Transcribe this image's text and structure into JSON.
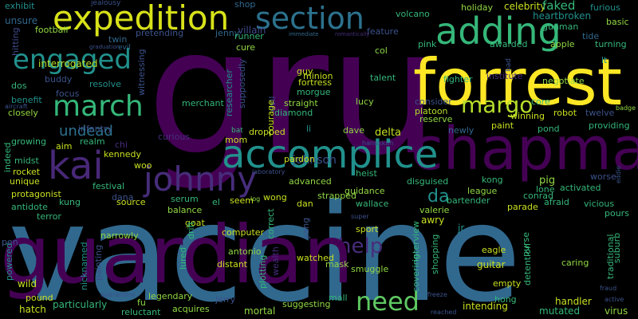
{
  "palette": {
    "background": "#000000",
    "dark_purple": "#440154",
    "indigo": "#3b528b",
    "blue": "#31688e",
    "teal": "#21918c",
    "green": "#35b779",
    "light_green": "#90d743",
    "yellow": "#fde725"
  },
  "words": [
    {
      "text": "gru",
      "color": "#440154"
    },
    {
      "text": "vaccine",
      "color": "#31688e"
    },
    {
      "text": "forrest",
      "color": "#fde725"
    },
    {
      "text": "chapman",
      "color": "#440154"
    },
    {
      "text": "accomplice",
      "color": "#21918c"
    },
    {
      "text": "expedition",
      "color": "#d8e219"
    },
    {
      "text": "section",
      "color": "#2c728e"
    },
    {
      "text": "adding",
      "color": "#35b779"
    },
    {
      "text": "engaged",
      "color": "#21918c"
    },
    {
      "text": "march",
      "color": "#35b779"
    },
    {
      "text": "kai",
      "color": "#482878"
    },
    {
      "text": "johnny",
      "color": "#472d7b"
    },
    {
      "text": "margo",
      "color": "#b5de2b"
    },
    {
      "text": "need",
      "color": "#5ec962"
    },
    {
      "text": "help",
      "color": "#472d7b"
    },
    {
      "text": "undead",
      "color": "#2c728e"
    },
    {
      "text": "da",
      "color": "#21918c"
    },
    {
      "text": "guardian",
      "color": "#440154"
    },
    {
      "text": "johnson",
      "color": "#3b528b"
    },
    {
      "text": "exhibit",
      "color": "#21918c"
    },
    {
      "text": "unsure",
      "color": "#31688e"
    },
    {
      "text": "jealousy",
      "color": "#3b528b"
    },
    {
      "text": "shop",
      "color": "#31688e"
    },
    {
      "text": "holiday",
      "color": "#90d743"
    },
    {
      "text": "celebrity",
      "color": "#c8e020"
    },
    {
      "text": "faked",
      "color": "#35b779"
    },
    {
      "text": "furious",
      "color": "#21918c"
    },
    {
      "text": "hitting",
      "color": "#3e4989"
    },
    {
      "text": "football",
      "color": "#90d743"
    },
    {
      "text": "twin",
      "color": "#31688e"
    },
    {
      "text": "villain",
      "color": "#3e4989"
    },
    {
      "text": "immediate",
      "color": "#31688e"
    },
    {
      "text": "heartbroken",
      "color": "#21918c"
    },
    {
      "text": "gunman",
      "color": "#35b779"
    },
    {
      "text": "basic",
      "color": "#90d743"
    },
    {
      "text": "graduation",
      "color": "#3b528b"
    },
    {
      "text": "evil",
      "color": "#31688e"
    },
    {
      "text": "romantically",
      "color": "#472d7b"
    },
    {
      "text": "feature",
      "color": "#3b528b"
    },
    {
      "text": "volcano",
      "color": "#35b779"
    },
    {
      "text": "tide",
      "color": "#31688e"
    },
    {
      "text": "interrogated",
      "color": "#b5de2b"
    },
    {
      "text": "pretending",
      "color": "#3b528b"
    },
    {
      "text": "jenny",
      "color": "#31688e"
    },
    {
      "text": "runner",
      "color": "#35b779"
    },
    {
      "text": "cure",
      "color": "#90d743"
    },
    {
      "text": "col",
      "color": "#90d743"
    },
    {
      "text": "pink",
      "color": "#35b779"
    },
    {
      "text": "awarded",
      "color": "#35b779"
    },
    {
      "text": "apple",
      "color": "#90d743"
    },
    {
      "text": "turning",
      "color": "#35b779"
    },
    {
      "text": "lt",
      "color": "#21918c"
    },
    {
      "text": "dos",
      "color": "#35b779"
    },
    {
      "text": "buddy",
      "color": "#3b528b"
    },
    {
      "text": "resolve",
      "color": "#21918c"
    },
    {
      "text": "witnessing",
      "color": "#3b528b"
    },
    {
      "text": "researcher",
      "color": "#21918c"
    },
    {
      "text": "minion",
      "color": "#c8e020"
    },
    {
      "text": "fortress",
      "color": "#c8e020"
    },
    {
      "text": "guy",
      "color": "#c8e020"
    },
    {
      "text": "talent",
      "color": "#35b779"
    },
    {
      "text": "fighter",
      "color": "#35b779"
    },
    {
      "text": "institute",
      "color": "#472d7b"
    },
    {
      "text": "negotiate",
      "color": "#90d743"
    },
    {
      "text": "bad",
      "color": "#3b528b"
    },
    {
      "text": "benefit",
      "color": "#21918c"
    },
    {
      "text": "focus",
      "color": "#3b528b"
    },
    {
      "text": "merchant",
      "color": "#35b779"
    },
    {
      "text": "supposedly",
      "color": "#3b528b"
    },
    {
      "text": "evil",
      "color": "#3b528b"
    },
    {
      "text": "morgue",
      "color": "#35b779"
    },
    {
      "text": "straight",
      "color": "#90d743"
    },
    {
      "text": "lucy",
      "color": "#90d743"
    },
    {
      "text": "consider",
      "color": "#3b528b"
    },
    {
      "text": "core",
      "color": "#35b779"
    },
    {
      "text": "twelve",
      "color": "#3b528b"
    },
    {
      "text": "badge",
      "color": "#90d743"
    },
    {
      "text": "aircraft",
      "color": "#3b528b"
    },
    {
      "text": "closely",
      "color": "#90d743"
    },
    {
      "text": "infantry",
      "color": "#3b528b"
    },
    {
      "text": "platoon",
      "color": "#b5de2b"
    },
    {
      "text": "reserve",
      "color": "#90d743"
    },
    {
      "text": "winning",
      "color": "#c8e020"
    },
    {
      "text": "robot",
      "color": "#c8e020"
    },
    {
      "text": "growing",
      "color": "#35b779"
    },
    {
      "text": "realm",
      "color": "#35b779"
    },
    {
      "text": "chi",
      "color": "#472d7b"
    },
    {
      "text": "curious",
      "color": "#472d7b"
    },
    {
      "text": "courage",
      "color": "#c8e020"
    },
    {
      "text": "diamond",
      "color": "#35b779"
    },
    {
      "text": "li",
      "color": "#21918c"
    },
    {
      "text": "dave",
      "color": "#90d743"
    },
    {
      "text": "delta",
      "color": "#c8e020"
    },
    {
      "text": "newly",
      "color": "#31688e"
    },
    {
      "text": "paint",
      "color": "#c8e020"
    },
    {
      "text": "pond",
      "color": "#35b779"
    },
    {
      "text": "providing",
      "color": "#35b779"
    },
    {
      "text": "midst",
      "color": "#35b779"
    },
    {
      "text": "aim",
      "color": "#c8e020"
    },
    {
      "text": "kennedy",
      "color": "#c8e020"
    },
    {
      "text": "mom",
      "color": "#c8e020"
    },
    {
      "text": "dropped",
      "color": "#c8e020"
    },
    {
      "text": "bat",
      "color": "#35b779"
    },
    {
      "text": "rocket",
      "color": "#c8e020"
    },
    {
      "text": "woo",
      "color": "#c8e020"
    },
    {
      "text": "laboratory",
      "color": "#3b528b"
    },
    {
      "text": "heist",
      "color": "#35b779"
    },
    {
      "text": "hanukkah",
      "color": "#3b528b"
    },
    {
      "text": "disguised",
      "color": "#35b779"
    },
    {
      "text": "kong",
      "color": "#35b779"
    },
    {
      "text": "pig",
      "color": "#90d743"
    },
    {
      "text": "worse",
      "color": "#3b528b"
    },
    {
      "text": "lone",
      "color": "#35b779"
    },
    {
      "text": "activated",
      "color": "#35b779"
    },
    {
      "text": "eddie",
      "color": "#3b528b"
    },
    {
      "text": "unique",
      "color": "#c8e020"
    },
    {
      "text": "indeed",
      "color": "#35b779"
    },
    {
      "text": "festival",
      "color": "#35b779"
    },
    {
      "text": "dana",
      "color": "#3b528b"
    },
    {
      "text": "serum",
      "color": "#35b779"
    },
    {
      "text": "wong",
      "color": "#c8e020"
    },
    {
      "text": "strapped",
      "color": "#90d743"
    },
    {
      "text": "advanced",
      "color": "#90d743"
    },
    {
      "text": "guidance",
      "color": "#90d743"
    },
    {
      "text": "league",
      "color": "#90d743"
    },
    {
      "text": "conrad",
      "color": "#35b779"
    },
    {
      "text": "vicious",
      "color": "#35b779"
    },
    {
      "text": "protagonist",
      "color": "#c8e020"
    },
    {
      "text": "antidote",
      "color": "#35b779"
    },
    {
      "text": "kung",
      "color": "#35b779"
    },
    {
      "text": "source",
      "color": "#c8e020"
    },
    {
      "text": "seem",
      "color": "#c8e020"
    },
    {
      "text": "log",
      "color": "#90d743"
    },
    {
      "text": "dan",
      "color": "#c8e020"
    },
    {
      "text": "pardon",
      "color": "#c8e020"
    },
    {
      "text": "wallace",
      "color": "#35b779"
    },
    {
      "text": "bartender",
      "color": "#35b779"
    },
    {
      "text": "afraid",
      "color": "#35b779"
    },
    {
      "text": "pours",
      "color": "#35b779"
    },
    {
      "text": "terror",
      "color": "#35b779"
    },
    {
      "text": "balance",
      "color": "#90d743"
    },
    {
      "text": "el",
      "color": "#35b779"
    },
    {
      "text": "valerie",
      "color": "#90d743"
    },
    {
      "text": "parade",
      "color": "#c8e020"
    },
    {
      "text": "goat",
      "color": "#c8e020"
    },
    {
      "text": "super",
      "color": "#3b528b"
    },
    {
      "text": "awry",
      "color": "#c8e020"
    },
    {
      "text": "pen",
      "color": "#3b528b"
    },
    {
      "text": "narrowly",
      "color": "#90d743"
    },
    {
      "text": "drift",
      "color": "#35b779"
    },
    {
      "text": "computer",
      "color": "#c8e020"
    },
    {
      "text": "correct",
      "color": "#35b779"
    },
    {
      "text": "yang",
      "color": "#3b528b"
    },
    {
      "text": "sport",
      "color": "#c8e020"
    },
    {
      "text": "jr",
      "color": "#21918c"
    },
    {
      "text": "eagle",
      "color": "#c8e020"
    },
    {
      "text": "purse",
      "color": "#35b779"
    },
    {
      "text": "suburb",
      "color": "#35b779"
    },
    {
      "text": "powered",
      "color": "#21918c"
    },
    {
      "text": "nicknamed",
      "color": "#21918c"
    },
    {
      "text": "painting",
      "color": "#3b528b"
    },
    {
      "text": "antonio",
      "color": "#90d743"
    },
    {
      "text": "distant",
      "color": "#c8e020"
    },
    {
      "text": "watched",
      "color": "#c8e020"
    },
    {
      "text": "mask",
      "color": "#90d743"
    },
    {
      "text": "smuggle",
      "color": "#90d743"
    },
    {
      "text": "interview",
      "color": "#35b779"
    },
    {
      "text": "shopping",
      "color": "#35b779"
    },
    {
      "text": "guitar",
      "color": "#c8e020"
    },
    {
      "text": "caring",
      "color": "#90d743"
    },
    {
      "text": "traditional",
      "color": "#35b779"
    },
    {
      "text": "wild",
      "color": "#c8e020"
    },
    {
      "text": "lured",
      "color": "#35b779"
    },
    {
      "text": "wealth",
      "color": "#472d7b"
    },
    {
      "text": "covering",
      "color": "#35b779"
    },
    {
      "text": "empty",
      "color": "#c8e020"
    },
    {
      "text": "pound",
      "color": "#c8e020"
    },
    {
      "text": "quarantine",
      "color": "#3b528b"
    },
    {
      "text": "legendary",
      "color": "#90d743"
    },
    {
      "text": "plotting",
      "color": "#35b779"
    },
    {
      "text": "suggesting",
      "color": "#90d743"
    },
    {
      "text": "mall",
      "color": "#35b779"
    },
    {
      "text": "freeze",
      "color": "#3b528b"
    },
    {
      "text": "detention",
      "color": "#35b779"
    },
    {
      "text": "hong",
      "color": "#35b779"
    },
    {
      "text": "handler",
      "color": "#c8e020"
    },
    {
      "text": "fraud",
      "color": "#3b528b"
    },
    {
      "text": "active",
      "color": "#3b528b"
    },
    {
      "text": "hatch",
      "color": "#c8e020"
    },
    {
      "text": "particularly",
      "color": "#35b779"
    },
    {
      "text": "fu",
      "color": "#90d743"
    },
    {
      "text": "reluctant",
      "color": "#35b779"
    },
    {
      "text": "acquires",
      "color": "#90d743"
    },
    {
      "text": "jerry",
      "color": "#3b528b"
    },
    {
      "text": "mortal",
      "color": "#90d743"
    },
    {
      "text": "intending",
      "color": "#c8e020"
    },
    {
      "text": "reached",
      "color": "#3b528b"
    },
    {
      "text": "mutated",
      "color": "#35b779"
    },
    {
      "text": "virus",
      "color": "#90d743"
    }
  ]
}
